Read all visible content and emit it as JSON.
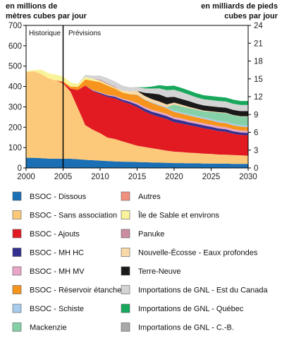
{
  "chart_data": {
    "type": "area",
    "y_left_label": [
      "en millions de",
      "mètres cubes par jour"
    ],
    "y_right_label": [
      "en milliards de pieds",
      "cubes par jour"
    ],
    "ylim_left": [
      0,
      700
    ],
    "ylim_right": [
      0,
      24
    ],
    "xlim": [
      2000,
      2030
    ],
    "x_ticks": [
      "2000",
      "2005",
      "2010",
      "2015",
      "2020",
      "2025",
      "2030"
    ],
    "y_left_ticks": [
      "0",
      "100",
      "200",
      "300",
      "400",
      "500",
      "600",
      "700"
    ],
    "y_right_ticks": [
      "0",
      "3",
      "6",
      "9",
      "12",
      "15",
      "18",
      "21",
      "24"
    ],
    "divider": {
      "x": 2005,
      "left_label": "Historique",
      "right_label": "Prévisions"
    },
    "grid": false,
    "x": [
      2000,
      2001,
      2002,
      2003,
      2004,
      2005,
      2006,
      2007,
      2008,
      2009,
      2010,
      2011,
      2012,
      2013,
      2014,
      2015,
      2016,
      2017,
      2018,
      2019,
      2020,
      2021,
      2022,
      2023,
      2024,
      2025,
      2026,
      2027,
      2028,
      2029,
      2030
    ],
    "series": [
      {
        "name": "BSOC - Dissous",
        "color": "#1a6fb5",
        "values": [
          50,
          50,
          48,
          46,
          45,
          45,
          45,
          43,
          40,
          38,
          36,
          34,
          32,
          31,
          30,
          29,
          28,
          27,
          26,
          25,
          24,
          24,
          23,
          23,
          22,
          22,
          21,
          21,
          20,
          20,
          20
        ]
      },
      {
        "name": "BSOC - Sans association",
        "color": "#fcc97a",
        "values": [
          420,
          425,
          415,
          395,
          385,
          370,
          330,
          250,
          170,
          150,
          135,
          115,
          110,
          100,
          90,
          80,
          75,
          70,
          65,
          60,
          56,
          54,
          52,
          50,
          48,
          47,
          45,
          44,
          43,
          42,
          40
        ]
      },
      {
        "name": "BSOC - Ajouts",
        "color": "#e21b23",
        "values": [
          0,
          0,
          0,
          0,
          0,
          5,
          15,
          90,
          195,
          190,
          192,
          200,
          200,
          195,
          195,
          190,
          175,
          165,
          160,
          155,
          145,
          140,
          135,
          130,
          125,
          120,
          115,
          112,
          105,
          100,
          100
        ]
      },
      {
        "name": "BSOC - MH HC",
        "color": "#33308f",
        "values": [
          0,
          0,
          0,
          0,
          0,
          0,
          0,
          0,
          0,
          3,
          5,
          7,
          8,
          9,
          10,
          12,
          13,
          14,
          15,
          15,
          15,
          15,
          14,
          14,
          14,
          13,
          13,
          13,
          12,
          12,
          12
        ]
      },
      {
        "name": "BSOC - MH MV",
        "color": "#e8a6c6",
        "values": [
          0,
          0,
          0,
          0,
          0,
          0,
          0,
          0,
          0,
          2,
          3,
          4,
          5,
          6,
          7,
          8,
          9,
          10,
          10,
          10,
          10,
          10,
          10,
          10,
          10,
          10,
          10,
          10,
          10,
          10,
          10
        ]
      },
      {
        "name": "BSOC - Réservoir étanche",
        "color": "#f7941d",
        "values": [
          0,
          0,
          0,
          0,
          0,
          5,
          10,
          15,
          30,
          45,
          50,
          45,
          35,
          30,
          30,
          40,
          35,
          33,
          30,
          28,
          25,
          24,
          23,
          22,
          22,
          21,
          20,
          20,
          19,
          19,
          18
        ]
      },
      {
        "name": "BSOC - Schiste",
        "color": "#a8cbeb",
        "values": [
          0,
          0,
          0,
          0,
          0,
          0,
          0,
          0,
          0,
          0,
          0,
          0,
          0,
          0,
          1,
          2,
          3,
          4,
          5,
          6,
          6,
          6,
          7,
          7,
          7,
          7,
          7,
          7,
          7,
          7,
          7
        ]
      },
      {
        "name": "Mackenzie",
        "color": "#86d0a8",
        "values": [
          0,
          0,
          0,
          0,
          0,
          0,
          0,
          0,
          0,
          0,
          0,
          0,
          0,
          0,
          0,
          0,
          0,
          0,
          0,
          0,
          30,
          30,
          30,
          30,
          30,
          35,
          40,
          42,
          42,
          42,
          45
        ]
      },
      {
        "name": "Autres",
        "color": "#f2907e",
        "values": [
          0,
          0,
          0,
          0,
          0,
          0,
          0,
          0,
          0,
          0,
          0,
          0,
          0,
          0,
          0,
          0,
          0,
          0,
          0,
          0,
          0,
          0,
          0,
          0,
          0,
          0,
          0,
          0,
          0,
          0,
          0
        ]
      },
      {
        "name": "Île de Sable et environs",
        "color": "#f9f39a",
        "values": [
          5,
          5,
          20,
          25,
          28,
          25,
          20,
          15,
          12,
          10,
          8,
          6,
          5,
          4,
          3,
          2,
          1,
          0,
          0,
          0,
          0,
          0,
          0,
          0,
          0,
          0,
          0,
          0,
          0,
          0,
          0
        ]
      },
      {
        "name": "Panuke",
        "color": "#c98ca1",
        "values": [
          0,
          0,
          0,
          0,
          0,
          0,
          0,
          0,
          0,
          0,
          5,
          5,
          5,
          0,
          0,
          0,
          0,
          0,
          0,
          0,
          0,
          0,
          0,
          0,
          0,
          0,
          0,
          0,
          0,
          0,
          0
        ]
      },
      {
        "name": "Nouvelle-Écosse - Eaux profondes",
        "color": "#fad9a8",
        "values": [
          0,
          0,
          0,
          0,
          0,
          0,
          0,
          0,
          0,
          0,
          0,
          0,
          0,
          5,
          10,
          15,
          15,
          15,
          15,
          13,
          10,
          8,
          6,
          5,
          4,
          3,
          3,
          2,
          2,
          2,
          2
        ]
      },
      {
        "name": "Terre-Neuve",
        "color": "#1a1a1a",
        "values": [
          0,
          0,
          0,
          0,
          0,
          0,
          0,
          0,
          0,
          0,
          0,
          0,
          0,
          0,
          0,
          0,
          15,
          28,
          35,
          35,
          28,
          28,
          28,
          25,
          25,
          25,
          25,
          25,
          25,
          25,
          25
        ]
      },
      {
        "name": "Importations de GNL - Est du Canada",
        "color": "#d4d4d4",
        "values": [
          0,
          0,
          0,
          0,
          0,
          0,
          0,
          0,
          10,
          15,
          20,
          25,
          25,
          25,
          20,
          20,
          22,
          24,
          30,
          35,
          35,
          34,
          32,
          31,
          30,
          30,
          30,
          30,
          30,
          30,
          30
        ]
      },
      {
        "name": "Importations de GNL - Québec",
        "color": "#17a85c",
        "values": [
          0,
          0,
          0,
          0,
          0,
          0,
          0,
          0,
          0,
          0,
          0,
          0,
          0,
          0,
          0,
          0,
          5,
          10,
          15,
          20,
          20,
          20,
          20,
          20,
          20,
          20,
          20,
          20,
          20,
          20,
          20
        ]
      },
      {
        "name": "Importations de GNL - C.-B.",
        "color": "#a8a8a8",
        "values": [
          0,
          0,
          0,
          0,
          0,
          0,
          0,
          0,
          0,
          0,
          0,
          0,
          0,
          0,
          0,
          0,
          0,
          0,
          0,
          0,
          0,
          0,
          0,
          0,
          0,
          0,
          0,
          0,
          0,
          0,
          0
        ]
      }
    ],
    "legend_columns": [
      [
        "BSOC - Dissous",
        "BSOC - Sans association",
        "BSOC - Ajouts",
        "BSOC - MH HC",
        "BSOC - MH MV",
        "BSOC - Réservoir étanche",
        "BSOC - Schiste",
        "Mackenzie"
      ],
      [
        "Autres",
        "Île de Sable et environs",
        "Panuke",
        "Nouvelle-Écosse - Eaux profondes",
        "Terre-Neuve",
        "Importations de GNL - Est du Canada",
        "Importations de GNL - Québec",
        "Importations de GNL - C.-B."
      ]
    ]
  }
}
